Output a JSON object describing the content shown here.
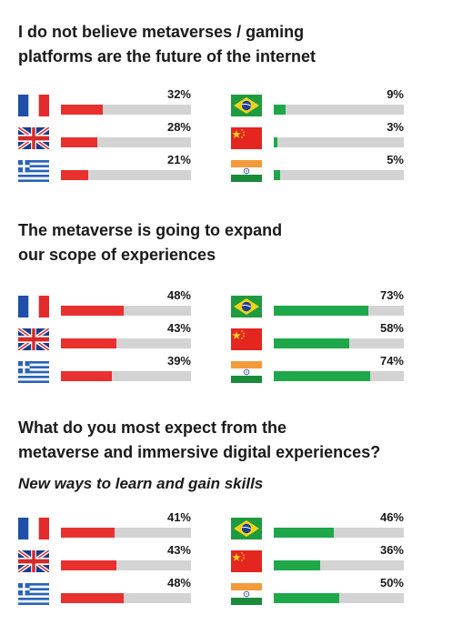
{
  "colors": {
    "europe": "#e8312f",
    "emerging": "#1ea84a",
    "track": "#d3d3d3"
  },
  "sections": [
    {
      "title_line1": "I do not believe metaverses / gaming",
      "title_line2": "platforms are the future of the internet",
      "subtitle": "",
      "left": [
        {
          "country": "France",
          "flag": "france-flag-icon",
          "value": 32,
          "label": "32%"
        },
        {
          "country": "United Kingdom",
          "flag": "uk-flag-icon",
          "value": 28,
          "label": "28%"
        },
        {
          "country": "Greece",
          "flag": "greece-flag-icon",
          "value": 21,
          "label": "21%"
        }
      ],
      "right": [
        {
          "country": "Brazil",
          "flag": "brazil-flag-icon",
          "value": 9,
          "label": "9%"
        },
        {
          "country": "China",
          "flag": "china-flag-icon",
          "value": 3,
          "label": "3%"
        },
        {
          "country": "India",
          "flag": "india-flag-icon",
          "value": 5,
          "label": "5%"
        }
      ]
    },
    {
      "title_line1": "The metaverse is going to expand",
      "title_line2": "our scope of experiences",
      "subtitle": "",
      "left": [
        {
          "country": "France",
          "flag": "france-flag-icon",
          "value": 48,
          "label": "48%"
        },
        {
          "country": "United Kingdom",
          "flag": "uk-flag-icon",
          "value": 43,
          "label": "43%"
        },
        {
          "country": "Greece",
          "flag": "greece-flag-icon",
          "value": 39,
          "label": "39%"
        }
      ],
      "right": [
        {
          "country": "Brazil",
          "flag": "brazil-flag-icon",
          "value": 73,
          "label": "73%"
        },
        {
          "country": "China",
          "flag": "china-flag-icon",
          "value": 58,
          "label": "58%"
        },
        {
          "country": "India",
          "flag": "india-flag-icon",
          "value": 74,
          "label": "74%"
        }
      ]
    },
    {
      "title_line1": "What do you most expect from the",
      "title_line2": "metaverse and immersive digital experiences?",
      "subtitle": "New ways to learn and gain skills",
      "left": [
        {
          "country": "France",
          "flag": "france-flag-icon",
          "value": 41,
          "label": "41%"
        },
        {
          "country": "United Kingdom",
          "flag": "uk-flag-icon",
          "value": 43,
          "label": "43%"
        },
        {
          "country": "Greece",
          "flag": "greece-flag-icon",
          "value": 48,
          "label": "48%"
        }
      ],
      "right": [
        {
          "country": "Brazil",
          "flag": "brazil-flag-icon",
          "value": 46,
          "label": "46%"
        },
        {
          "country": "China",
          "flag": "china-flag-icon",
          "value": 36,
          "label": "36%"
        },
        {
          "country": "India",
          "flag": "india-flag-icon",
          "value": 50,
          "label": "50%"
        }
      ]
    }
  ],
  "chart_data": [
    {
      "type": "bar",
      "title": "I do not believe metaverses / gaming platforms are the future of the internet",
      "categories": [
        "France",
        "United Kingdom",
        "Greece",
        "Brazil",
        "China",
        "India"
      ],
      "values": [
        32,
        28,
        21,
        9,
        3,
        5
      ],
      "unit": "%",
      "ylim": [
        0,
        100
      ]
    },
    {
      "type": "bar",
      "title": "The metaverse is going to expand our scope of experiences",
      "categories": [
        "France",
        "United Kingdom",
        "Greece",
        "Brazil",
        "China",
        "India"
      ],
      "values": [
        48,
        43,
        39,
        73,
        58,
        74
      ],
      "unit": "%",
      "ylim": [
        0,
        100
      ]
    },
    {
      "type": "bar",
      "title": "What do you most expect from the metaverse and immersive digital experiences?",
      "subtitle": "New ways to learn and gain skills",
      "categories": [
        "France",
        "United Kingdom",
        "Greece",
        "Brazil",
        "China",
        "India"
      ],
      "values": [
        41,
        43,
        48,
        46,
        36,
        50
      ],
      "unit": "%",
      "ylim": [
        0,
        100
      ]
    }
  ]
}
